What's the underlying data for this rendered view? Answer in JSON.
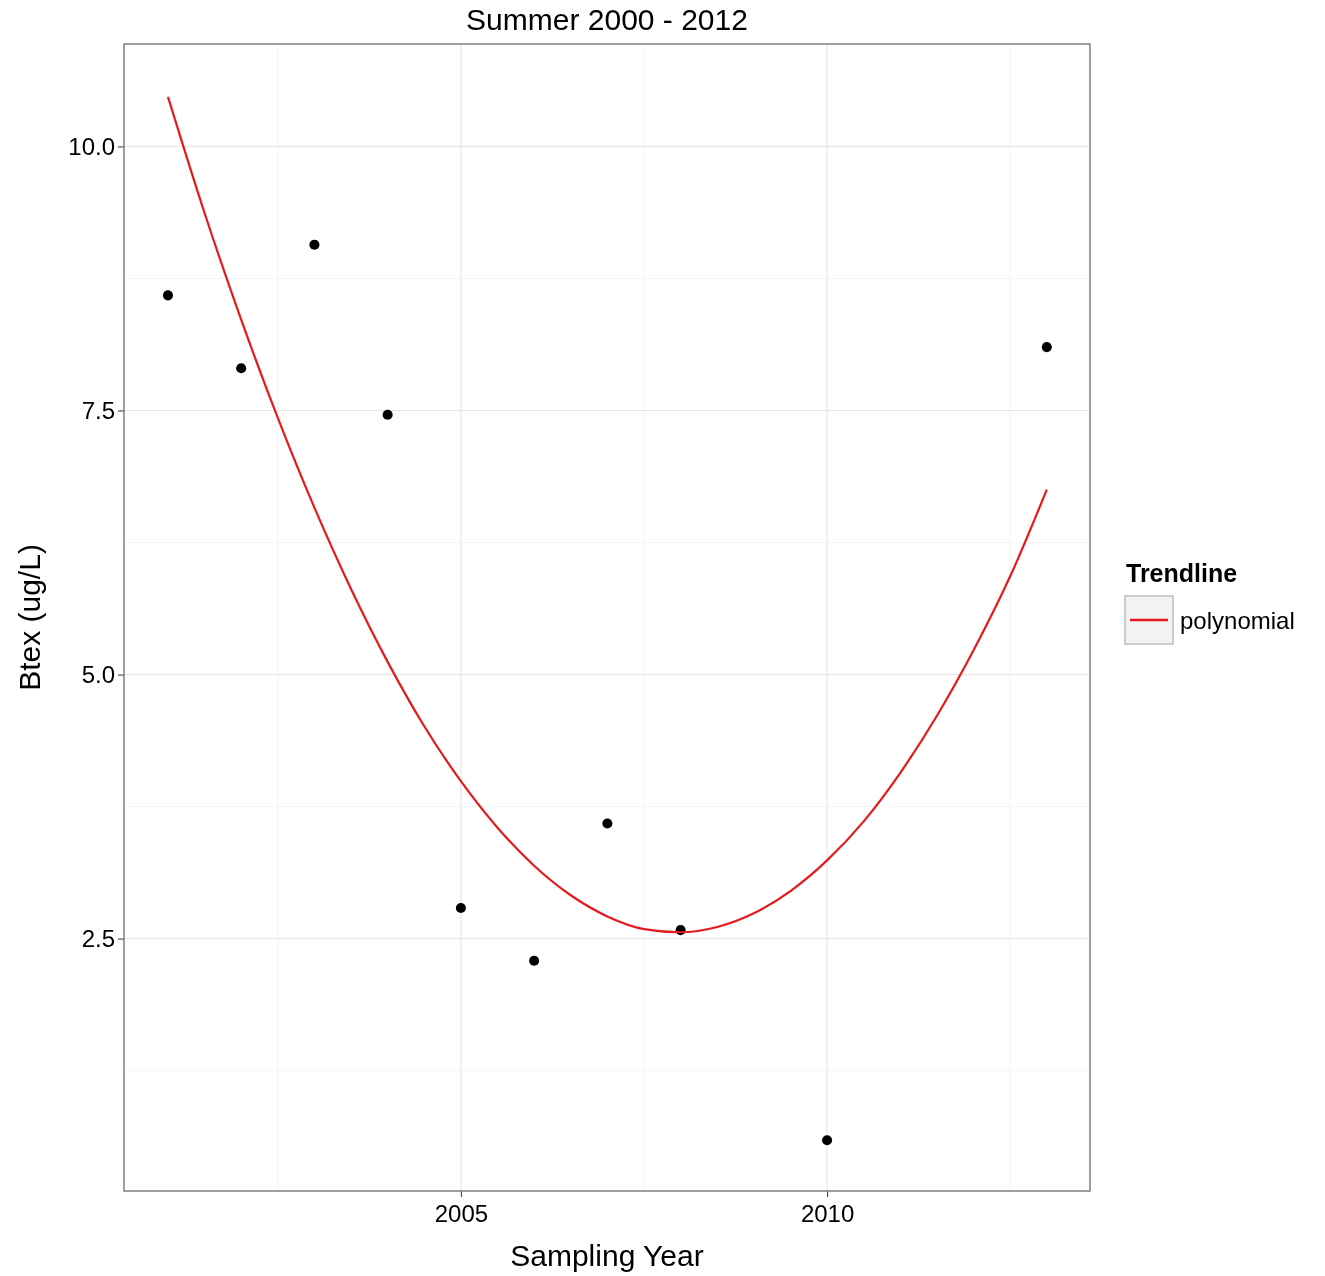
{
  "chart_data": {
    "type": "scatter",
    "title": "Summer 2000 - 2012",
    "xlabel": "Sampling Year",
    "ylabel": "Btex (ug/L)",
    "legend_title": "Trendline",
    "xlim": [
      2000.4,
      2013.59
    ],
    "xticks": [
      2005,
      2010
    ],
    "ylim": [
      0.11,
      10.97
    ],
    "yticks": [
      {
        "value": 2.5,
        "label": "2.5"
      },
      {
        "value": 5,
        "label": "5.0"
      },
      {
        "value": 7.5,
        "label": "7.5"
      },
      {
        "value": 10,
        "label": "10.0"
      }
    ],
    "grid": true,
    "legend": "right",
    "series": [
      {
        "marker": "circle",
        "color": "#000000",
        "x": [
          2001,
          2002,
          2003,
          2004,
          2005,
          2006,
          2007,
          2008,
          2010,
          2013
        ],
        "values": [
          8.59,
          7.9,
          9.07,
          7.46,
          2.79,
          2.29,
          3.59,
          2.58,
          0.59,
          8.1
        ]
      },
      {
        "type": "line",
        "name": "polynomial",
        "color": "#e41a1c",
        "line_style": "solid",
        "x": [
          2001,
          2001.5,
          2002,
          2002.5,
          2003,
          2003.5,
          2004,
          2004.5,
          2005,
          2005.5,
          2006,
          2006.5,
          2007,
          2007.5,
          2008,
          2008.5,
          2009,
          2009.5,
          2010,
          2010.5,
          2011,
          2011.5,
          2012,
          2012.5,
          2013
        ],
        "values": [
          10.47,
          9.37,
          8.36,
          7.43,
          6.58,
          5.81,
          5.12,
          4.51,
          3.99,
          3.55,
          3.19,
          2.91,
          2.71,
          2.59,
          2.56,
          2.61,
          2.74,
          2.95,
          3.24,
          3.61,
          4.07,
          4.61,
          5.23,
          5.93,
          6.75
        ]
      }
    ]
  }
}
